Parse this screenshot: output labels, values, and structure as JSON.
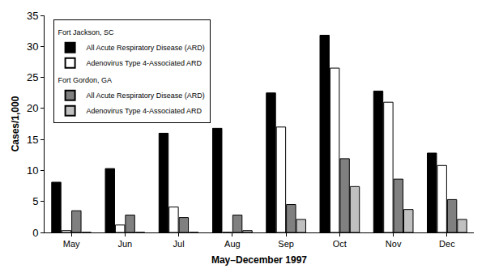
{
  "chart_data": {
    "type": "bar",
    "x_label": "May–December 1997",
    "y_label": "Cases/1,000",
    "categories": [
      "May",
      "Jun",
      "Jul",
      "Aug",
      "Sep",
      "Oct",
      "Nov",
      "Dec"
    ],
    "series": [
      {
        "group": "Fort Jackson, SC",
        "name": "All Acute Respiratory Disease (ARD)",
        "color": "#000000",
        "values": [
          8.1,
          10.3,
          16,
          16.8,
          22.5,
          31.8,
          22.8,
          12.8
        ]
      },
      {
        "group": "Fort Jackson, SC",
        "name": "Adenovirus Type 4-Associated ARD",
        "color": "#ffffff",
        "values": [
          0.3,
          1.2,
          4.1,
          0,
          17,
          26.5,
          21,
          10.8
        ]
      },
      {
        "group": "Fort Gordon, GA",
        "name": "All Acute Respiratory Disease (ARD)",
        "color": "#808080",
        "values": [
          3.5,
          2.8,
          2.4,
          2.8,
          4.5,
          11.9,
          8.6,
          5.3
        ]
      },
      {
        "group": "Fort Gordon, GA",
        "name": "Adenovirus Type 4-Associated ARD",
        "color": "#c0c0c0",
        "values": [
          0,
          0,
          0,
          0.3,
          2.1,
          7.4,
          3.7,
          2.1
        ]
      }
    ],
    "ylim": [
      0,
      35
    ],
    "yticks": [
      0,
      5,
      10,
      15,
      20,
      25,
      30,
      35
    ],
    "grid": false,
    "legend": "top left"
  }
}
